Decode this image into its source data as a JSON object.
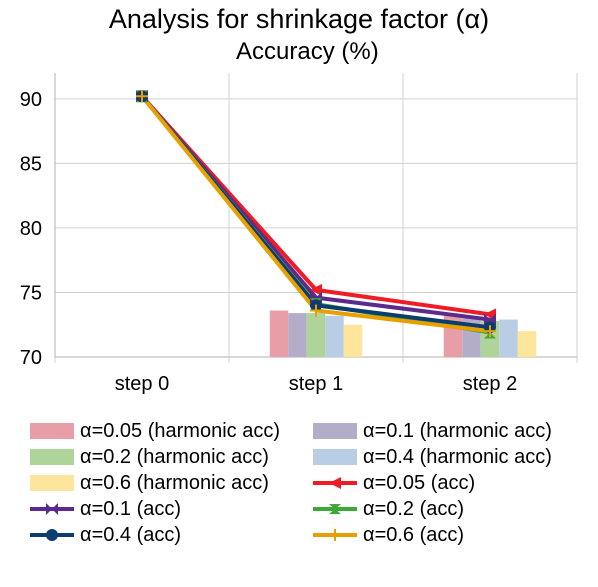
{
  "chart_data": {
    "type": "bar+line",
    "title": "Analysis for shrinkage factor (α)",
    "subtitle": "Accuracy (%)",
    "categories": [
      "step 0",
      "step 1",
      "step 2"
    ],
    "ylim": [
      70,
      92
    ],
    "yticks": [
      "70",
      "75",
      "80",
      "85",
      "90"
    ],
    "grid": true,
    "legend_position": "bottom",
    "bar_series": [
      {
        "name": "α=0.05 (harmonic acc)",
        "color": "#e89ea6",
        "values": [
          null,
          73.6,
          73.2
        ]
      },
      {
        "name": "α=0.1 (harmonic acc)",
        "color": "#b3adc9",
        "values": [
          null,
          73.4,
          73.0
        ]
      },
      {
        "name": "α=0.2 (harmonic acc)",
        "color": "#aed49a",
        "values": [
          null,
          73.4,
          72.8
        ]
      },
      {
        "name": "α=0.4 (harmonic acc)",
        "color": "#b9cde4",
        "values": [
          null,
          73.2,
          72.9
        ]
      },
      {
        "name": "α=0.6 (harmonic acc)",
        "color": "#fde69b",
        "values": [
          null,
          72.5,
          72.0
        ]
      }
    ],
    "line_series": [
      {
        "name": "α=0.05 (acc)",
        "color": "#ee1c25",
        "marker": "triangle-left",
        "values": [
          90.2,
          75.2,
          73.3
        ]
      },
      {
        "name": "α=0.1 (acc)",
        "color": "#5c2a8c",
        "marker": "bowtie",
        "values": [
          90.2,
          74.6,
          72.9
        ]
      },
      {
        "name": "α=0.2 (acc)",
        "color": "#3aa936",
        "marker": "hourglass",
        "values": [
          90.2,
          74.1,
          71.9
        ]
      },
      {
        "name": "α=0.4 (acc)",
        "color": "#0d3c6e",
        "marker": "circle",
        "values": [
          90.2,
          74.0,
          72.3
        ]
      },
      {
        "name": "α=0.6 (acc)",
        "color": "#e8a000",
        "marker": "plus",
        "values": [
          90.2,
          73.6,
          72.0
        ]
      }
    ]
  }
}
